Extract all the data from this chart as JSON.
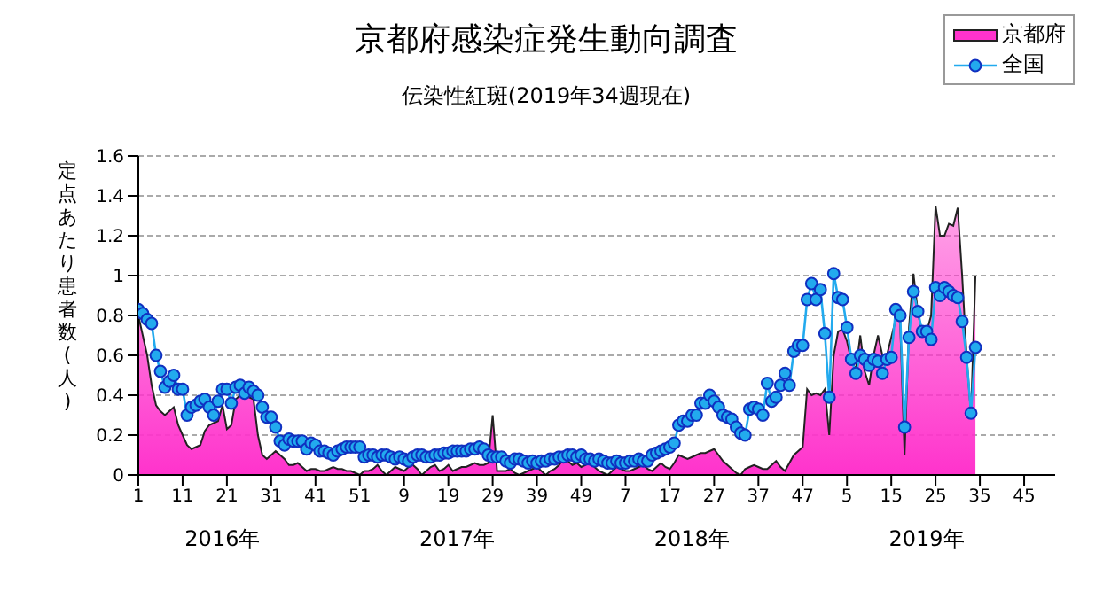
{
  "chart_data": {
    "type": "area",
    "title": "京都府感染症発生動向調査",
    "subtitle": "伝染性紅斑(2019年34週現在)",
    "ylabel": "定点あたり患者数(人)",
    "annotations": [
      "2016年",
      "2017年",
      "2018年",
      "2019年"
    ],
    "categories": [
      "1",
      null,
      null,
      null,
      null,
      null,
      null,
      null,
      null,
      null,
      "11",
      null,
      null,
      null,
      null,
      null,
      null,
      null,
      null,
      null,
      "21",
      null,
      null,
      null,
      null,
      null,
      null,
      null,
      null,
      null,
      "31",
      null,
      null,
      null,
      null,
      null,
      null,
      null,
      null,
      null,
      "41",
      null,
      null,
      null,
      null,
      null,
      null,
      null,
      null,
      null,
      "51",
      null,
      null,
      null,
      null,
      null,
      null,
      null,
      null,
      null,
      "9",
      null,
      null,
      null,
      null,
      null,
      null,
      null,
      null,
      null,
      "19",
      null,
      null,
      null,
      null,
      null,
      null,
      null,
      null,
      null,
      "29",
      null,
      null,
      null,
      null,
      null,
      null,
      null,
      null,
      null,
      "39",
      null,
      null,
      null,
      null,
      null,
      null,
      null,
      null,
      null,
      "49",
      null,
      null,
      null,
      null,
      null,
      null,
      null,
      null,
      null,
      "7",
      null,
      null,
      null,
      null,
      null,
      null,
      null,
      null,
      null,
      "17",
      null,
      null,
      null,
      null,
      null,
      null,
      null,
      null,
      null,
      "27",
      null,
      null,
      null,
      null,
      null,
      null,
      null,
      null,
      null,
      "37",
      null,
      null,
      null,
      null,
      null,
      null,
      null,
      null,
      null,
      "47",
      null,
      null,
      null,
      null,
      null,
      null,
      null,
      null,
      null,
      "5",
      null,
      null,
      null,
      null,
      null,
      null,
      null,
      null,
      null,
      "15",
      null,
      null,
      null,
      null,
      null,
      null,
      null,
      null,
      null,
      "25",
      null,
      null,
      null,
      null,
      null,
      null,
      null,
      null,
      null,
      "35",
      null,
      null,
      null,
      null,
      null,
      null,
      null,
      null,
      null,
      "45",
      null,
      null,
      null,
      null,
      null,
      null,
      null
    ],
    "series": [
      {
        "name": "京都府",
        "color": "#ff33cc",
        "values": [
          0.8,
          0.7,
          0.6,
          0.45,
          0.35,
          0.32,
          0.3,
          0.32,
          0.34,
          0.25,
          0.2,
          0.15,
          0.13,
          0.14,
          0.15,
          0.22,
          0.25,
          0.26,
          0.27,
          0.35,
          0.23,
          0.25,
          0.38,
          0.4,
          0.4,
          0.39,
          0.38,
          0.2,
          0.1,
          0.08,
          0.1,
          0.12,
          0.1,
          0.08,
          0.05,
          0.05,
          0.06,
          0.04,
          0.02,
          0.03,
          0.03,
          0.02,
          0.02,
          0.03,
          0.04,
          0.03,
          0.03,
          0.02,
          0.02,
          0.01,
          0,
          0.02,
          0.02,
          0.03,
          0.05,
          0.02,
          0,
          0.02,
          0.04,
          0.03,
          0.02,
          0.04,
          0.05,
          0.03,
          0,
          0.02,
          0.04,
          0.05,
          0.02,
          0.03,
          0.05,
          0.02,
          0.03,
          0.04,
          0.04,
          0.05,
          0.06,
          0.05,
          0.05,
          0.06,
          0.3,
          0.02,
          0.02,
          0.02,
          0.03,
          0.01,
          0,
          0.01,
          0.02,
          0.03,
          0.04,
          0.02,
          0,
          0.02,
          0.03,
          0.05,
          0.08,
          0.07,
          0.05,
          0.06,
          0.04,
          0.05,
          0.07,
          0.04,
          0.02,
          0.01,
          0,
          0.02,
          0.04,
          0.03,
          0.02,
          0.02,
          0.03,
          0.04,
          0.05,
          0.03,
          0.02,
          0.04,
          0.06,
          0.04,
          0.03,
          0.06,
          0.1,
          0.09,
          0.08,
          0.09,
          0.1,
          0.11,
          0.11,
          0.12,
          0.13,
          0.1,
          0.07,
          0.05,
          0.03,
          0.01,
          0,
          0.03,
          0.04,
          0.05,
          0.04,
          0.03,
          0.03,
          0.05,
          0.07,
          0.04,
          0.02,
          0.06,
          0.1,
          0.12,
          0.14,
          0.43,
          0.4,
          0.41,
          0.4,
          0.43,
          0.2,
          0.6,
          0.72,
          0.73,
          0.67,
          0.57,
          0.53,
          0.7,
          0.52,
          0.45,
          0.6,
          0.7,
          0.6,
          0.6,
          0.69,
          0.78,
          0.77,
          0.1,
          0.74,
          1.01,
          0.82,
          0.7,
          0.72,
          0.8,
          1.35,
          1.2,
          1.2,
          1.26,
          1.25,
          1.34,
          1.0,
          0.6,
          0.3,
          1.0,
          null,
          null,
          null,
          null,
          null,
          null,
          null,
          null,
          null,
          null,
          null,
          null,
          null,
          null,
          null,
          null,
          null,
          null
        ]
      },
      {
        "name": "全国",
        "type": "line",
        "color": "#22aaee",
        "marker": "circle",
        "values": [
          0.83,
          0.81,
          0.78,
          0.76,
          0.6,
          0.52,
          0.44,
          0.47,
          0.5,
          0.43,
          0.43,
          0.3,
          0.34,
          0.35,
          0.37,
          0.38,
          0.34,
          0.3,
          0.37,
          0.43,
          0.43,
          0.36,
          0.44,
          0.45,
          0.41,
          0.44,
          0.42,
          0.4,
          0.34,
          0.29,
          0.29,
          0.24,
          0.17,
          0.15,
          0.18,
          0.17,
          0.17,
          0.17,
          0.13,
          0.16,
          0.15,
          0.12,
          0.12,
          0.11,
          0.1,
          0.12,
          0.13,
          0.14,
          0.14,
          0.14,
          0.14,
          0.09,
          0.1,
          0.1,
          0.09,
          0.1,
          0.1,
          0.09,
          0.08,
          0.09,
          0.08,
          0.07,
          0.09,
          0.1,
          0.1,
          0.09,
          0.09,
          0.1,
          0.1,
          0.11,
          0.11,
          0.12,
          0.12,
          0.12,
          0.12,
          0.13,
          0.13,
          0.14,
          0.13,
          0.1,
          0.09,
          0.09,
          0.09,
          0.07,
          0.06,
          0.08,
          0.08,
          0.07,
          0.06,
          0.07,
          0.06,
          0.07,
          0.07,
          0.08,
          0.08,
          0.09,
          0.09,
          0.1,
          0.1,
          0.09,
          0.1,
          0.08,
          0.08,
          0.07,
          0.08,
          0.07,
          0.06,
          0.06,
          0.07,
          0.06,
          0.06,
          0.07,
          0.07,
          0.08,
          0.07,
          0.07,
          0.1,
          0.11,
          0.12,
          0.13,
          0.14,
          0.16,
          0.25,
          0.27,
          0.27,
          0.3,
          0.3,
          0.36,
          0.36,
          0.4,
          0.37,
          0.34,
          0.3,
          0.29,
          0.28,
          0.24,
          0.21,
          0.2,
          0.33,
          0.34,
          0.33,
          0.3,
          0.46,
          0.37,
          0.39,
          0.45,
          0.51,
          0.45,
          0.62,
          0.65,
          0.65,
          0.88,
          0.96,
          0.88,
          0.93,
          0.71,
          0.39,
          1.01,
          0.89,
          0.88,
          0.74,
          0.58,
          0.51,
          0.6,
          0.58,
          0.55,
          0.58,
          0.57,
          0.51,
          0.58,
          0.59,
          0.83,
          0.8,
          0.24,
          0.69,
          0.92,
          0.82,
          0.72,
          0.72,
          0.68,
          0.94,
          0.9,
          0.94,
          0.92,
          0.9,
          0.89,
          0.77,
          0.59,
          0.31,
          0.64,
          null,
          null,
          null,
          null,
          null,
          null,
          null,
          null,
          null,
          null,
          null,
          null,
          null,
          null,
          null,
          null,
          null,
          null
        ]
      }
    ],
    "ylim": [
      0,
      1.6
    ],
    "yticks": [
      0,
      0.2,
      0.4,
      0.6,
      0.8,
      1,
      1.2,
      1.4,
      1.6
    ],
    "grid": "y",
    "legend": "top right"
  }
}
